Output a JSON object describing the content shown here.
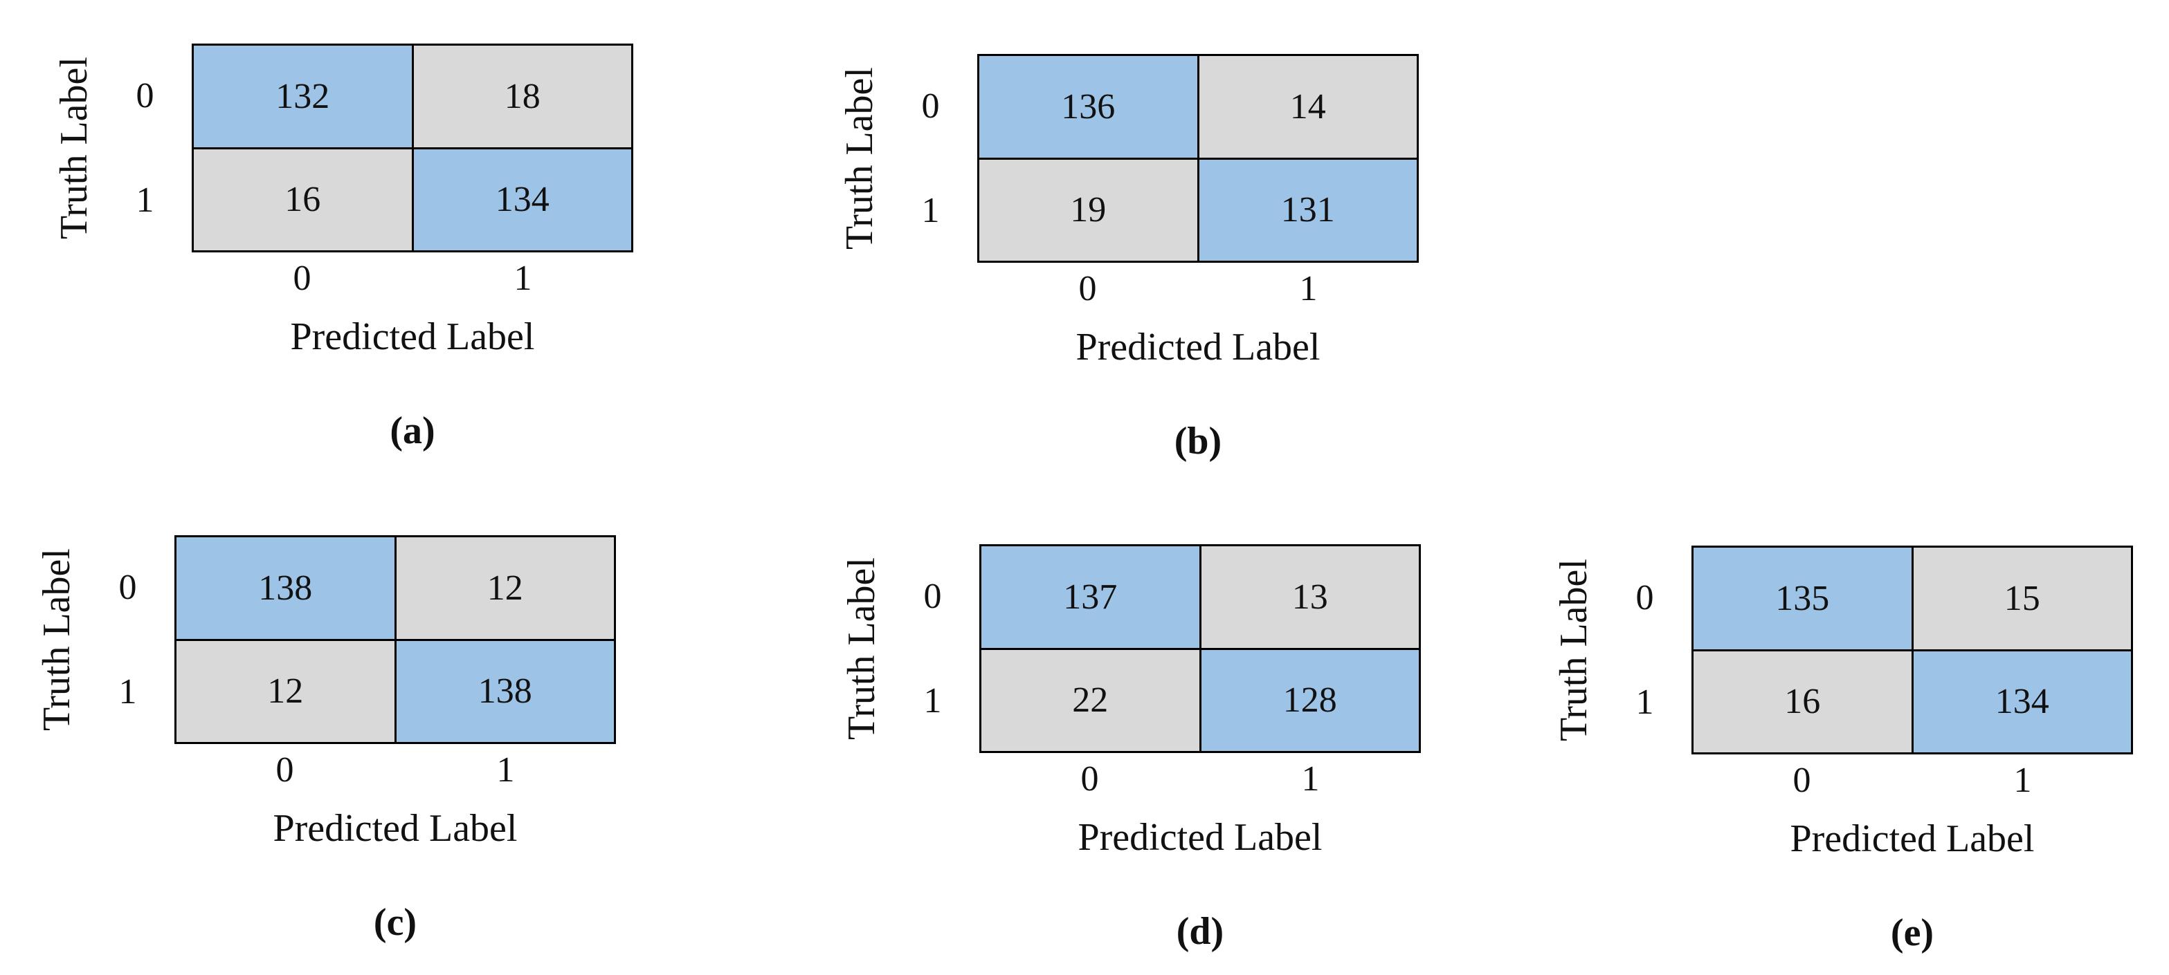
{
  "figure": {
    "background": "#ffffff",
    "colors": {
      "diagonal_cell": "#9DC3E6",
      "off_diagonal_cell": "#D9D9D9",
      "border": "#000000",
      "text": "#111111"
    },
    "axis": {
      "x_label": "Predicted Label",
      "y_label": "Truth Label",
      "tick_labels": [
        "0",
        "1"
      ]
    },
    "matrices": [
      {
        "caption": "(a)",
        "values": [
          [
            132,
            18
          ],
          [
            16,
            134
          ]
        ]
      },
      {
        "caption": "(b)",
        "values": [
          [
            136,
            14
          ],
          [
            19,
            131
          ]
        ]
      },
      {
        "caption": "(c)",
        "values": [
          [
            138,
            12
          ],
          [
            12,
            138
          ]
        ]
      },
      {
        "caption": "(d)",
        "values": [
          [
            137,
            13
          ],
          [
            22,
            128
          ]
        ]
      },
      {
        "caption": "(e)",
        "values": [
          [
            135,
            15
          ],
          [
            16,
            134
          ]
        ]
      }
    ]
  },
  "chart_data": [
    {
      "type": "heatmap",
      "title": "(a)",
      "xlabel": "Predicted Label",
      "ylabel": "Truth Label",
      "x_ticks": [
        "0",
        "1"
      ],
      "y_ticks": [
        "0",
        "1"
      ],
      "values": [
        [
          132,
          18
        ],
        [
          16,
          134
        ]
      ],
      "legend_position": "none",
      "grid": false
    },
    {
      "type": "heatmap",
      "title": "(b)",
      "xlabel": "Predicted Label",
      "ylabel": "Truth Label",
      "x_ticks": [
        "0",
        "1"
      ],
      "y_ticks": [
        "0",
        "1"
      ],
      "values": [
        [
          136,
          14
        ],
        [
          19,
          131
        ]
      ],
      "legend_position": "none",
      "grid": false
    },
    {
      "type": "heatmap",
      "title": "(c)",
      "xlabel": "Predicted Label",
      "ylabel": "Truth Label",
      "x_ticks": [
        "0",
        "1"
      ],
      "y_ticks": [
        "0",
        "1"
      ],
      "values": [
        [
          138,
          12
        ],
        [
          12,
          138
        ]
      ],
      "legend_position": "none",
      "grid": false
    },
    {
      "type": "heatmap",
      "title": "(d)",
      "xlabel": "Predicted Label",
      "ylabel": "Truth Label",
      "x_ticks": [
        "0",
        "1"
      ],
      "y_ticks": [
        "0",
        "1"
      ],
      "values": [
        [
          137,
          13
        ],
        [
          22,
          128
        ]
      ],
      "legend_position": "none",
      "grid": false
    },
    {
      "type": "heatmap",
      "title": "(e)",
      "xlabel": "Predicted Label",
      "ylabel": "Truth Label",
      "x_ticks": [
        "0",
        "1"
      ],
      "y_ticks": [
        "0",
        "1"
      ],
      "values": [
        [
          135,
          15
        ],
        [
          16,
          134
        ]
      ],
      "legend_position": "none",
      "grid": false
    }
  ]
}
